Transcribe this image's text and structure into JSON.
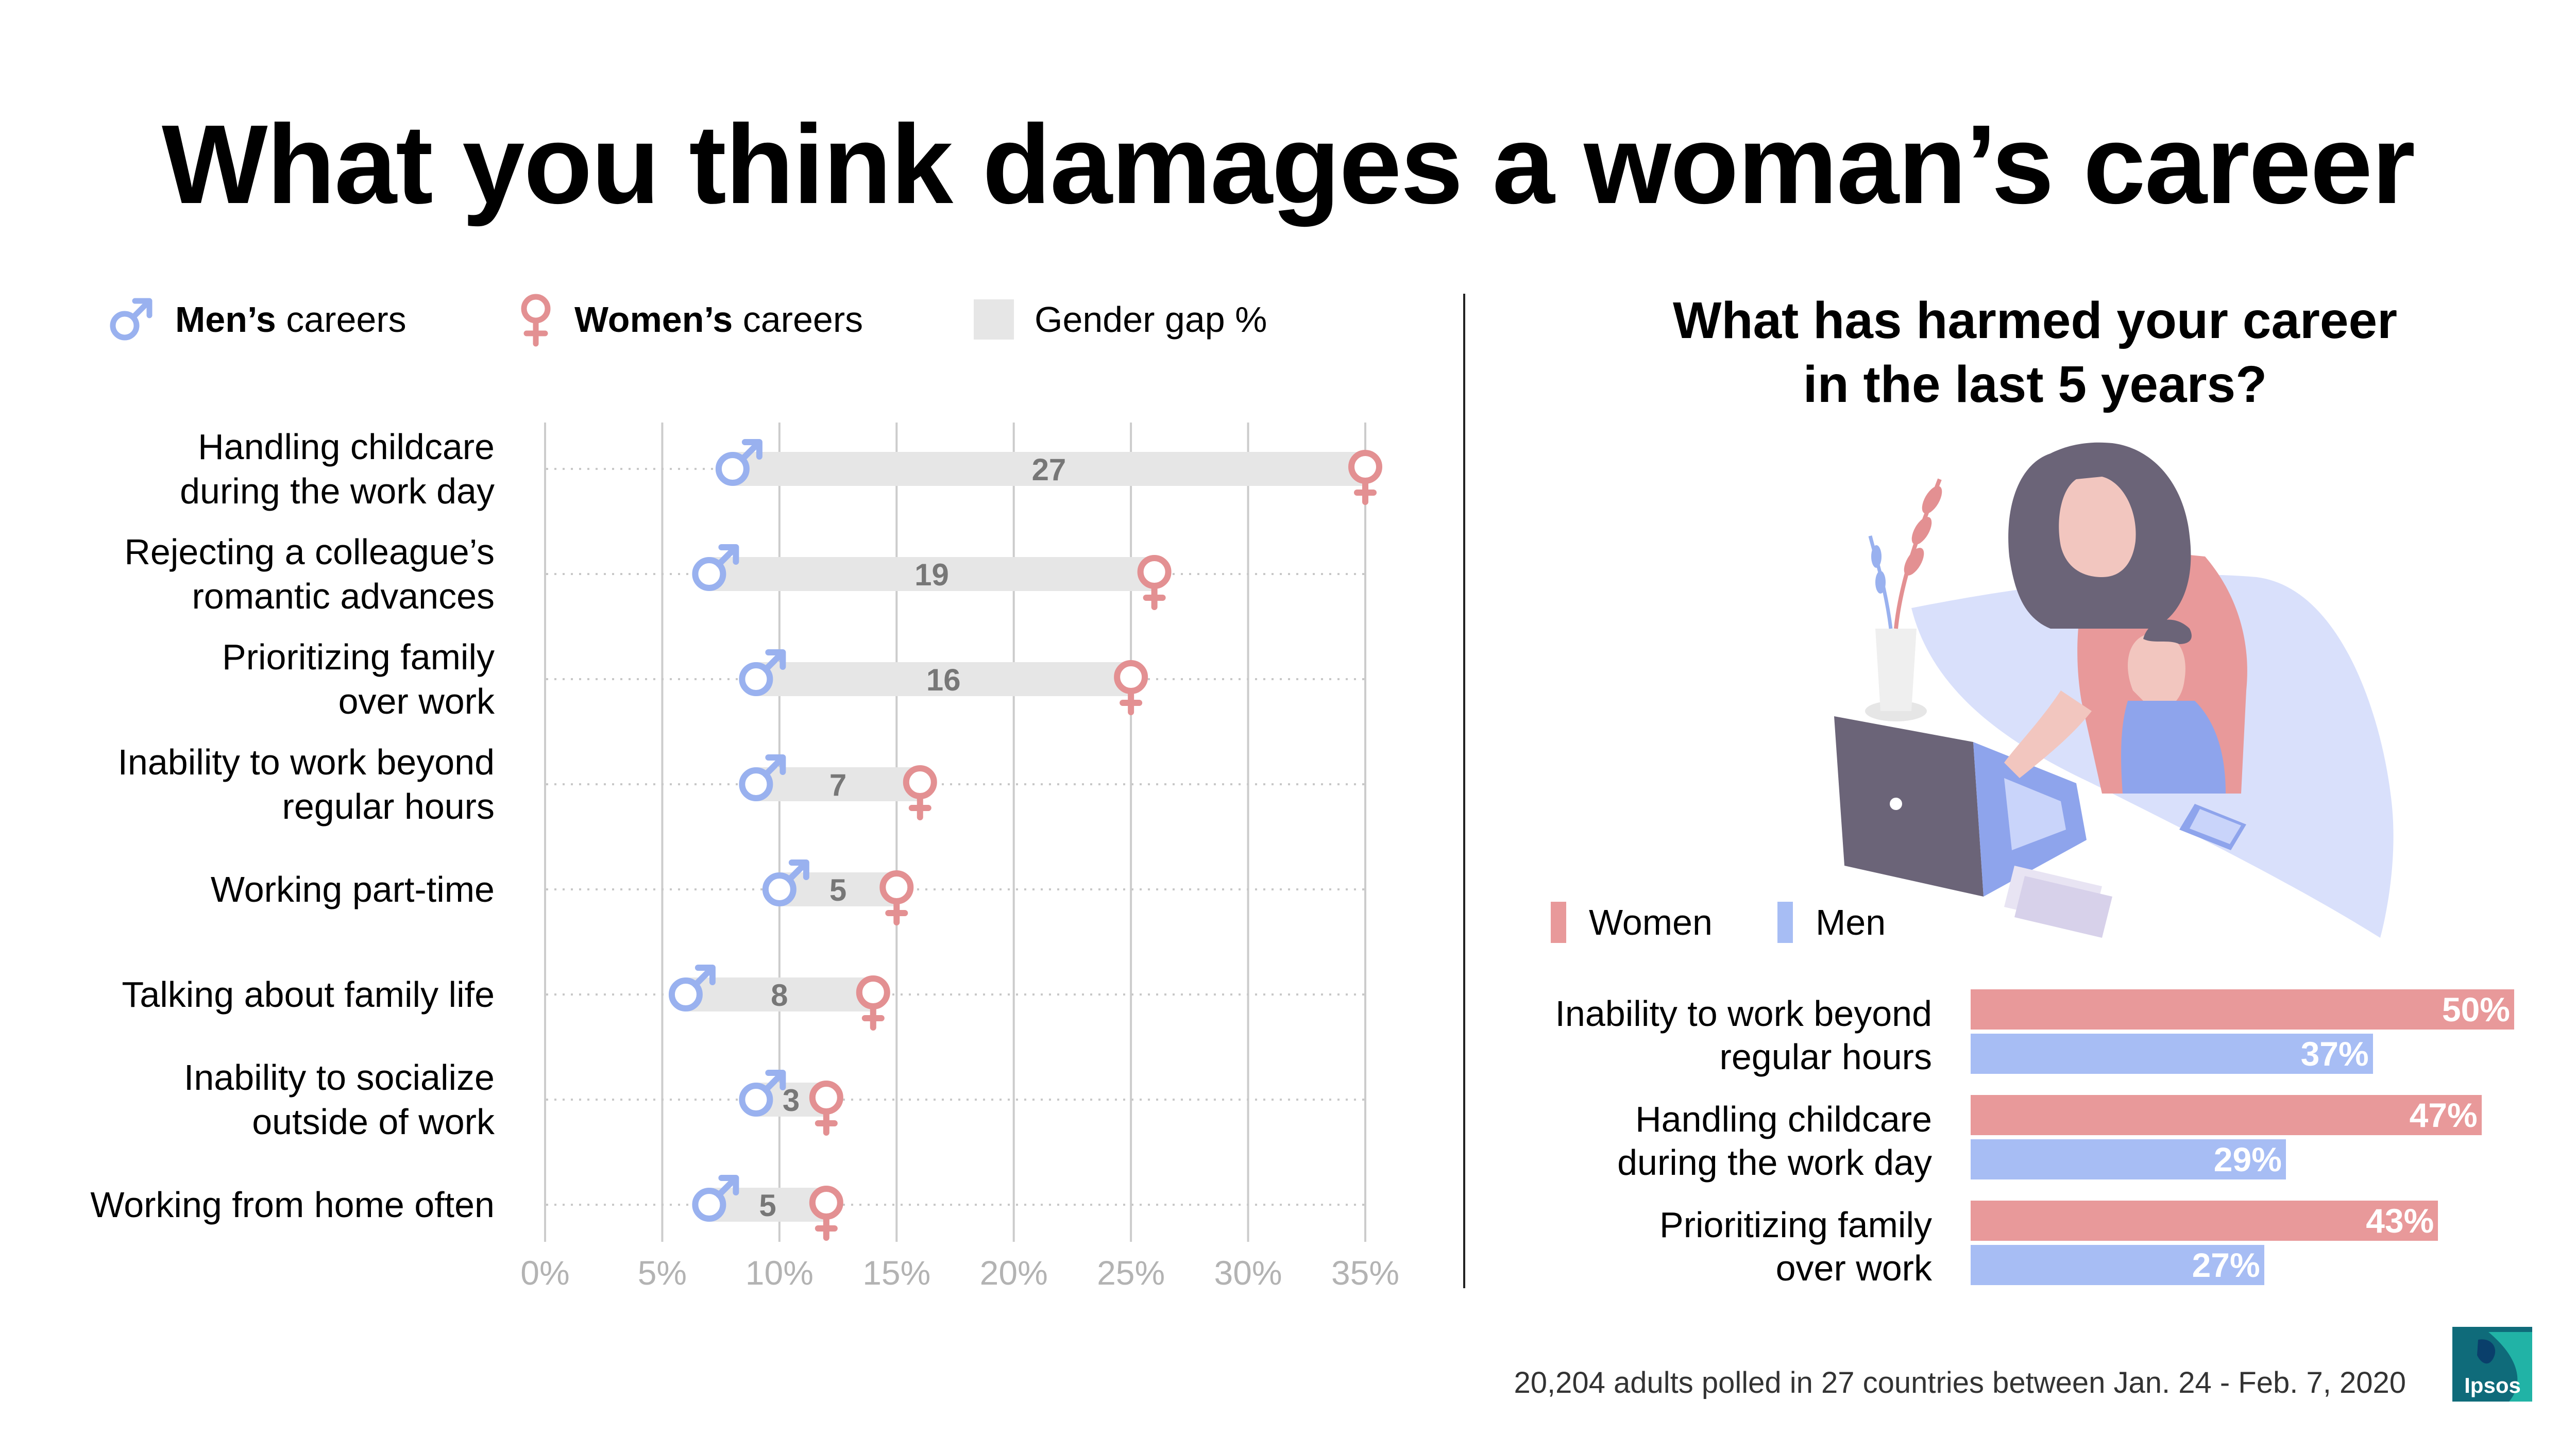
{
  "title": "What you think damages a woman’s career",
  "legend": {
    "men_bold": "Men’s",
    "men_rest": " careers",
    "women_bold": "Women’s",
    "women_rest": " careers",
    "gap_label": "Gender gap %"
  },
  "colors": {
    "men": "#99b1ef",
    "women": "#e39092",
    "gap": "#e6e6e6",
    "bar_women": "#e8999a",
    "bar_men": "#a7bdf4"
  },
  "icons": [
    "male-symbol-icon",
    "female-symbol-icon",
    "ipsos-logo-icon"
  ],
  "chart_data": [
    {
      "type": "dumbbell",
      "legend_placement": "top",
      "grid": true,
      "xlim": [
        0,
        35
      ],
      "x_ticks": [
        "0%",
        "5%",
        "10%",
        "15%",
        "20%",
        "25%",
        "30%",
        "35%"
      ],
      "series": [
        {
          "name": "Men’s careers"
        },
        {
          "name": "Women’s careers"
        },
        {
          "name": "Gender gap %"
        }
      ],
      "rows": [
        {
          "label": "Handling childcare\nduring the work day",
          "men": 8,
          "women": 35,
          "gap": "27"
        },
        {
          "label": "Rejecting a colleague’s\nromantic advances",
          "men": 7,
          "women": 26,
          "gap": "19"
        },
        {
          "label": "Prioritizing family\nover work",
          "men": 9,
          "women": 25,
          "gap": "16"
        },
        {
          "label": "Inability to work beyond\nregular hours",
          "men": 9,
          "women": 16,
          "gap": "7"
        },
        {
          "label": "Working part-time",
          "men": 10,
          "women": 15,
          "gap": "5"
        },
        {
          "label": "Talking about family life",
          "men": 6,
          "women": 14,
          "gap": "8"
        },
        {
          "label": "Inability to socialize\noutside of work",
          "men": 9,
          "women": 12,
          "gap": "3"
        },
        {
          "label": "Working from home often",
          "men": 7,
          "women": 12,
          "gap": "5"
        }
      ]
    },
    {
      "type": "bar",
      "orientation": "horizontal",
      "title": "What has harmed your career\nin the last 5 years?",
      "legend_placement": "top-left",
      "series": [
        {
          "name": "Women",
          "values": [
            50,
            47,
            43
          ],
          "labels": [
            "50%",
            "47%",
            "43%"
          ]
        },
        {
          "name": "Men",
          "values": [
            37,
            29,
            27
          ],
          "labels": [
            "37%",
            "29%",
            "27%"
          ]
        }
      ],
      "categories": [
        "Inability to work beyond\nregular hours",
        "Handling childcare\nduring the work day",
        "Prioritizing family\nover work"
      ],
      "xlim": [
        0,
        50
      ]
    }
  ],
  "footnote": "20,204 adults polled in 27 countries between Jan. 24 - Feb. 7, 2020",
  "logo_text": "Ipsos"
}
